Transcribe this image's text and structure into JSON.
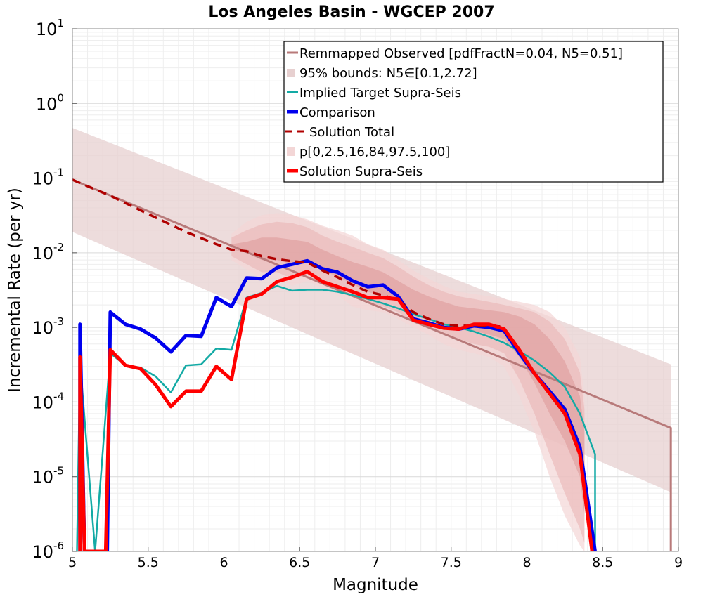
{
  "chart_data": {
    "type": "line",
    "title": "Los Angeles Basin - WGCEP 2007",
    "xlabel": "Magnitude",
    "ylabel": "Incremental Rate (per yr)",
    "xlim": [
      5,
      9
    ],
    "ylim_log10": [
      -6,
      1
    ],
    "yscale": "log",
    "x_ticks": [
      5,
      5.5,
      6,
      6.5,
      7,
      7.5,
      8,
      8.5,
      9
    ],
    "x_tick_labels": [
      "5",
      "5.5",
      "6",
      "6.5",
      "7",
      "7.5",
      "8",
      "8.5",
      "9"
    ],
    "y_tick_exponents": [
      "1",
      "0",
      "-1",
      "-2",
      "-3",
      "-4",
      "-5",
      "-6"
    ],
    "y_tick_base": "10",
    "grid": true,
    "legend_position": "top-right",
    "bounds_95": {
      "name": "95% bounds: N5∈[0.1,2.72]",
      "color": "#e7d0d0",
      "x": [
        5.0,
        8.95
      ],
      "upper": [
        0.47,
        0.00032
      ],
      "lower": [
        0.019,
        6.2e-06
      ]
    },
    "percentile_bands": {
      "name": "p[0,2.5,16,84,97.5,100]",
      "colors": [
        "#f3d6d6",
        "#e9b5b5",
        "#dd9898"
      ],
      "x": [
        6.05,
        6.15,
        6.25,
        6.35,
        6.45,
        6.55,
        6.65,
        6.75,
        6.85,
        6.95,
        7.05,
        7.15,
        7.25,
        7.35,
        7.45,
        7.55,
        7.65,
        7.75,
        7.85,
        7.95,
        8.05,
        8.15,
        8.25,
        8.35,
        8.38
      ],
      "p0": [
        0.008,
        0.006,
        0.0045,
        0.0045,
        0.0036,
        0.0042,
        0.0034,
        0.0027,
        0.0019,
        0.0017,
        0.0016,
        0.0013,
        0.001,
        0.0008,
        0.0006,
        0.0005,
        0.00045,
        0.0004,
        0.0003,
        0.00012,
        4e-05,
        1e-05,
        3e-06,
        1.2e-06,
        1e-06
      ],
      "p2_5": [
        0.009,
        0.007,
        0.0055,
        0.0055,
        0.0045,
        0.005,
        0.0042,
        0.0034,
        0.0026,
        0.0021,
        0.0019,
        0.0016,
        0.0012,
        0.001,
        0.0008,
        0.0007,
        0.0006,
        0.00055,
        0.00045,
        0.0002,
        7e-05,
        2e-05,
        6e-06,
        2e-06,
        1.3e-06
      ],
      "p16": [
        0.011,
        0.01,
        0.008,
        0.008,
        0.007,
        0.0075,
        0.0058,
        0.0048,
        0.0038,
        0.003,
        0.0026,
        0.0022,
        0.0016,
        0.0013,
        0.0011,
        0.001,
        0.0009,
        0.0008,
        0.0007,
        0.0004,
        0.00018,
        7e-05,
        3e-05,
        1e-05,
        3e-06
      ],
      "p84": [
        0.013,
        0.014,
        0.016,
        0.016,
        0.015,
        0.014,
        0.011,
        0.009,
        0.0075,
        0.0065,
        0.0055,
        0.0042,
        0.0032,
        0.0026,
        0.0022,
        0.0019,
        0.0018,
        0.0017,
        0.0016,
        0.0014,
        0.0011,
        0.0007,
        0.00035,
        0.00012,
        4e-05
      ],
      "p97_5": [
        0.016,
        0.02,
        0.024,
        0.026,
        0.025,
        0.022,
        0.017,
        0.014,
        0.012,
        0.01,
        0.0085,
        0.0065,
        0.0048,
        0.0037,
        0.003,
        0.0026,
        0.0024,
        0.0022,
        0.002,
        0.0018,
        0.0016,
        0.0012,
        0.0007,
        0.00025,
        8e-05
      ],
      "p100": [
        0.018,
        0.026,
        0.032,
        0.034,
        0.032,
        0.028,
        0.023,
        0.02,
        0.017,
        0.013,
        0.011,
        0.008,
        0.0058,
        0.0045,
        0.0036,
        0.003,
        0.0028,
        0.0026,
        0.0024,
        0.0022,
        0.002,
        0.0016,
        0.001,
        0.0004,
        0.00012
      ]
    },
    "series": [
      {
        "name": "Remmapped Observed [pdfFractN=0.04, N5=0.51]",
        "color": "#b87a7a",
        "width": 3,
        "dash": "",
        "x": [
          5.0,
          8.95,
          8.95
        ],
        "y": [
          0.095,
          4.5e-05,
          1e-06
        ]
      },
      {
        "name": "Implied Target Supra-Seis",
        "color": "#13aaa5",
        "width": 2.5,
        "dash": "",
        "x": [
          5.03,
          5.05,
          5.15,
          5.25,
          5.35,
          5.45,
          5.55,
          5.65,
          5.75,
          5.85,
          5.95,
          6.05,
          6.15,
          6.25,
          6.35,
          6.45,
          6.55,
          6.65,
          6.75,
          6.85,
          6.95,
          7.05,
          7.15,
          7.25,
          7.35,
          7.45,
          7.55,
          7.65,
          7.75,
          7.85,
          7.95,
          8.05,
          8.15,
          8.25,
          8.35,
          8.45,
          8.45
        ],
        "y": [
          1e-06,
          0.00035,
          1e-06,
          0.00045,
          0.00031,
          0.00029,
          0.00022,
          0.000135,
          0.00031,
          0.00032,
          0.00052,
          0.0005,
          0.0025,
          0.0029,
          0.0036,
          0.0031,
          0.0032,
          0.0032,
          0.003,
          0.0027,
          0.0024,
          0.0021,
          0.0018,
          0.0015,
          0.0013,
          0.0011,
          0.001,
          0.00088,
          0.00075,
          0.00062,
          0.00048,
          0.00036,
          0.00025,
          0.00016,
          7e-05,
          2e-05,
          1e-06
        ]
      },
      {
        "name": "Comparison",
        "color": "#0000ee",
        "width": 5,
        "dash": "",
        "x": [
          5.05,
          5.05,
          5.08,
          5.23,
          5.25,
          5.35,
          5.45,
          5.55,
          5.65,
          5.75,
          5.85,
          5.95,
          6.05,
          6.15,
          6.25,
          6.35,
          6.45,
          6.55,
          6.65,
          6.75,
          6.85,
          6.95,
          7.05,
          7.15,
          7.25,
          7.35,
          7.45,
          7.55,
          7.65,
          7.75,
          7.85,
          7.95,
          8.05,
          8.15,
          8.25,
          8.35,
          8.45
        ],
        "y": [
          1e-06,
          0.0011,
          1e-06,
          1e-06,
          0.0016,
          0.0011,
          0.00095,
          0.00072,
          0.00047,
          0.00078,
          0.00076,
          0.0025,
          0.0019,
          0.0046,
          0.0045,
          0.0063,
          0.007,
          0.0078,
          0.0061,
          0.0055,
          0.0042,
          0.0035,
          0.0037,
          0.0026,
          0.0013,
          0.00115,
          0.001,
          0.00095,
          0.00105,
          0.001,
          0.0009,
          0.00045,
          0.00024,
          0.00014,
          8e-05,
          2.5e-05,
          1e-06
        ]
      },
      {
        "name": "Solution Total",
        "color": "#b00000",
        "width": 3.5,
        "dash": "12,8",
        "x": [
          5.0,
          5.25,
          5.5,
          5.75,
          5.95,
          6.05,
          6.15,
          6.25,
          6.35,
          6.45,
          6.55,
          6.65,
          6.75,
          6.85,
          6.95,
          7.05,
          7.15,
          7.25,
          7.35,
          7.45,
          7.55,
          7.65,
          7.75,
          7.85
        ],
        "y": [
          0.095,
          0.058,
          0.033,
          0.019,
          0.013,
          0.011,
          0.0105,
          0.009,
          0.0082,
          0.0077,
          0.0074,
          0.0058,
          0.0047,
          0.0037,
          0.003,
          0.0027,
          0.0023,
          0.0016,
          0.0013,
          0.0011,
          0.00105,
          0.00105,
          0.00105,
          0.00102
        ]
      },
      {
        "name": "Solution Supra-Seis",
        "color": "#ff0000",
        "width": 5,
        "dash": "",
        "x": [
          5.05,
          5.05,
          5.08,
          5.22,
          5.25,
          5.35,
          5.45,
          5.55,
          5.65,
          5.75,
          5.85,
          5.95,
          6.05,
          6.15,
          6.25,
          6.35,
          6.45,
          6.55,
          6.65,
          6.75,
          6.85,
          6.95,
          7.05,
          7.15,
          7.25,
          7.35,
          7.45,
          7.55,
          7.65,
          7.75,
          7.85,
          7.95,
          8.05,
          8.15,
          8.25,
          8.35,
          8.43
        ],
        "y": [
          1e-06,
          0.0004,
          1e-06,
          1e-06,
          0.0005,
          0.00031,
          0.00028,
          0.00017,
          8.7e-05,
          0.00014,
          0.00014,
          0.0003,
          0.0002,
          0.0024,
          0.0028,
          0.0041,
          0.0047,
          0.0056,
          0.0041,
          0.0035,
          0.003,
          0.0025,
          0.0025,
          0.0024,
          0.00125,
          0.0011,
          0.00098,
          0.00095,
          0.0011,
          0.0011,
          0.00095,
          0.0005,
          0.00024,
          0.00013,
          7e-05,
          2e-05,
          1e-06
        ]
      }
    ],
    "legend": [
      {
        "label": "Remmapped Observed [pdfFractN=0.04, N5=0.51]",
        "style": "line",
        "color": "#b87a7a"
      },
      {
        "label": "95% bounds: N5∈[0.1,2.72]",
        "style": "patch",
        "color": "#e7d0d0"
      },
      {
        "label": "Implied Target Supra-Seis",
        "style": "line",
        "color": "#13aaa5"
      },
      {
        "label": "Comparison",
        "style": "thick",
        "color": "#0000ee"
      },
      {
        "label": "Solution Total",
        "style": "dash",
        "color": "#b00000"
      },
      {
        "label": "p[0,2.5,16,84,97.5,100]",
        "style": "patch",
        "color": "#f3d6d6"
      },
      {
        "label": "Solution Supra-Seis",
        "style": "thick",
        "color": "#ff0000"
      }
    ]
  }
}
